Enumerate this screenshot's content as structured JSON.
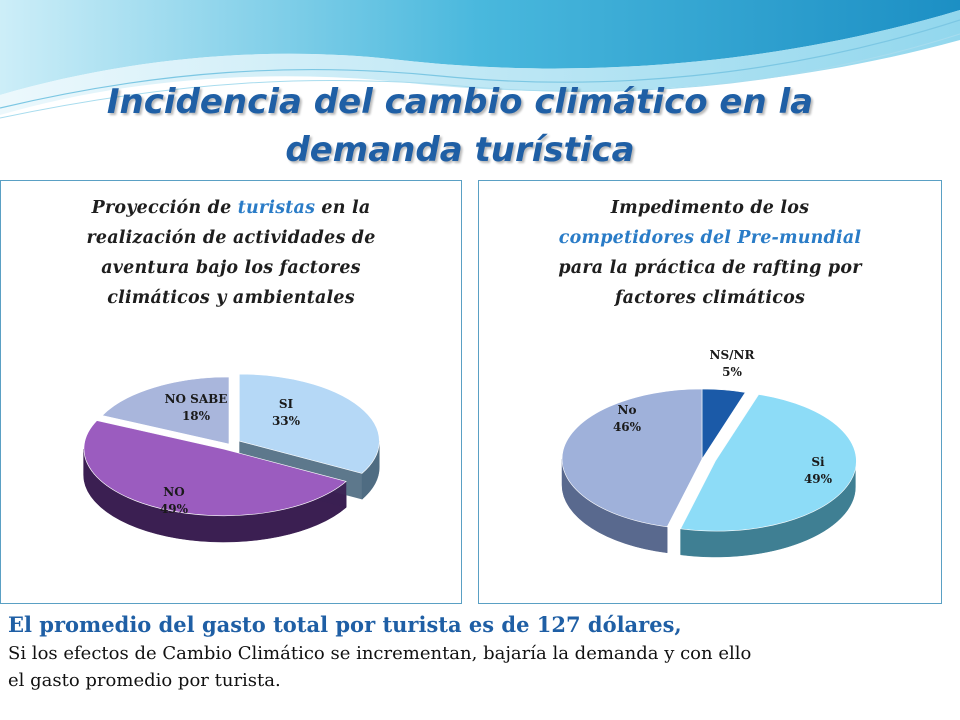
{
  "slide": {
    "title_line1": "Incidencia del cambio climático en la",
    "title_line2": "demanda turística"
  },
  "colors": {
    "title": "#1f5fa5",
    "title_highlight": "#2a7cc7",
    "panel_border": "#5aa0c4",
    "summary_headline": "#1f5fa5"
  },
  "chart_data": [
    {
      "type": "pie",
      "title_pre": "Proyección de ",
      "title_highlight": "turistas",
      "title_line1_post": " en la",
      "title_line2": "realización de actividades de",
      "title_line3": "aventura bajo los  factores",
      "title_line4": "climáticos y ambientales",
      "slices": [
        {
          "label": "SI",
          "value": 33,
          "value_label": "33%",
          "color": "#b5d8f6",
          "side_color": "#4f6c82",
          "exploded": true
        },
        {
          "label": "NO",
          "value": 49,
          "value_label": "49%",
          "color": "#9b5cbf",
          "side_color": "#3b1f52",
          "exploded": true
        },
        {
          "label": "NO SABE",
          "value": 18,
          "value_label": "18%",
          "color": "#a9b6dc",
          "side_color": "#4e5b78",
          "exploded": false
        }
      ],
      "legend": "none"
    },
    {
      "type": "pie",
      "title_line1": "Impedimento de los",
      "title_highlight": "competidores del Pre-mundial",
      "title_line3": "para la  práctica de rafting por",
      "title_line4": "factores climáticos",
      "slices": [
        {
          "label": "NS/NR",
          "value": 5,
          "value_label": "5%",
          "color": "#1b5aa8",
          "side_color": "#0f3466",
          "exploded": false
        },
        {
          "label": "Si",
          "value": 49,
          "value_label": "49%",
          "color": "#8ddcf7",
          "side_color": "#3f7f93",
          "exploded": true
        },
        {
          "label": "No",
          "value": 46,
          "value_label": "46%",
          "color": "#9fb1da",
          "side_color": "#59698e",
          "exploded": false
        }
      ],
      "legend": "none"
    }
  ],
  "summary": {
    "headline": "El promedio del gasto total  por turista es de  127 dólares,",
    "body_line1": "Si los efectos  de Cambio Climático se incrementan, bajaría la demanda y con ello",
    "body_line2": "el gasto promedio por turista."
  }
}
